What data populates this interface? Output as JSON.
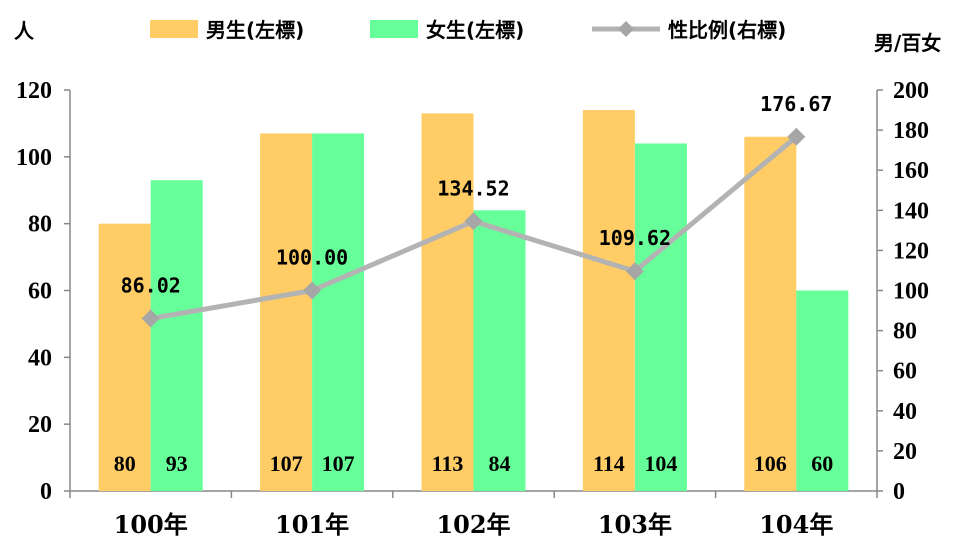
{
  "chart_data": {
    "type": "bar",
    "categories": [
      "100年",
      "101年",
      "102年",
      "103年",
      "104年"
    ],
    "series": [
      {
        "name": "男生(左標)",
        "type": "bar",
        "axis": "left",
        "color": "#ffcc66",
        "values": [
          80,
          107,
          113,
          114,
          106
        ]
      },
      {
        "name": "女生(左標)",
        "type": "bar",
        "axis": "left",
        "color": "#66ff99",
        "values": [
          93,
          107,
          84,
          104,
          60
        ]
      },
      {
        "name": "性比例(右標)",
        "type": "line",
        "axis": "right",
        "color": "#b3b3b3",
        "values": [
          86.02,
          100.0,
          134.52,
          109.62,
          176.67
        ],
        "labels": [
          "86.02",
          "100.00",
          "134.52",
          "109.62",
          "176.67"
        ]
      }
    ],
    "ylabel_left": "人",
    "ylabel_right": "男/百女",
    "ylim_left": [
      0,
      120
    ],
    "yticks_left": [
      0,
      20,
      40,
      60,
      80,
      100,
      120
    ],
    "ylim_right": [
      0,
      200
    ],
    "yticks_right": [
      0,
      20,
      40,
      60,
      80,
      100,
      120,
      140,
      160,
      180,
      200
    ],
    "legend_position": "top",
    "grid": false
  }
}
